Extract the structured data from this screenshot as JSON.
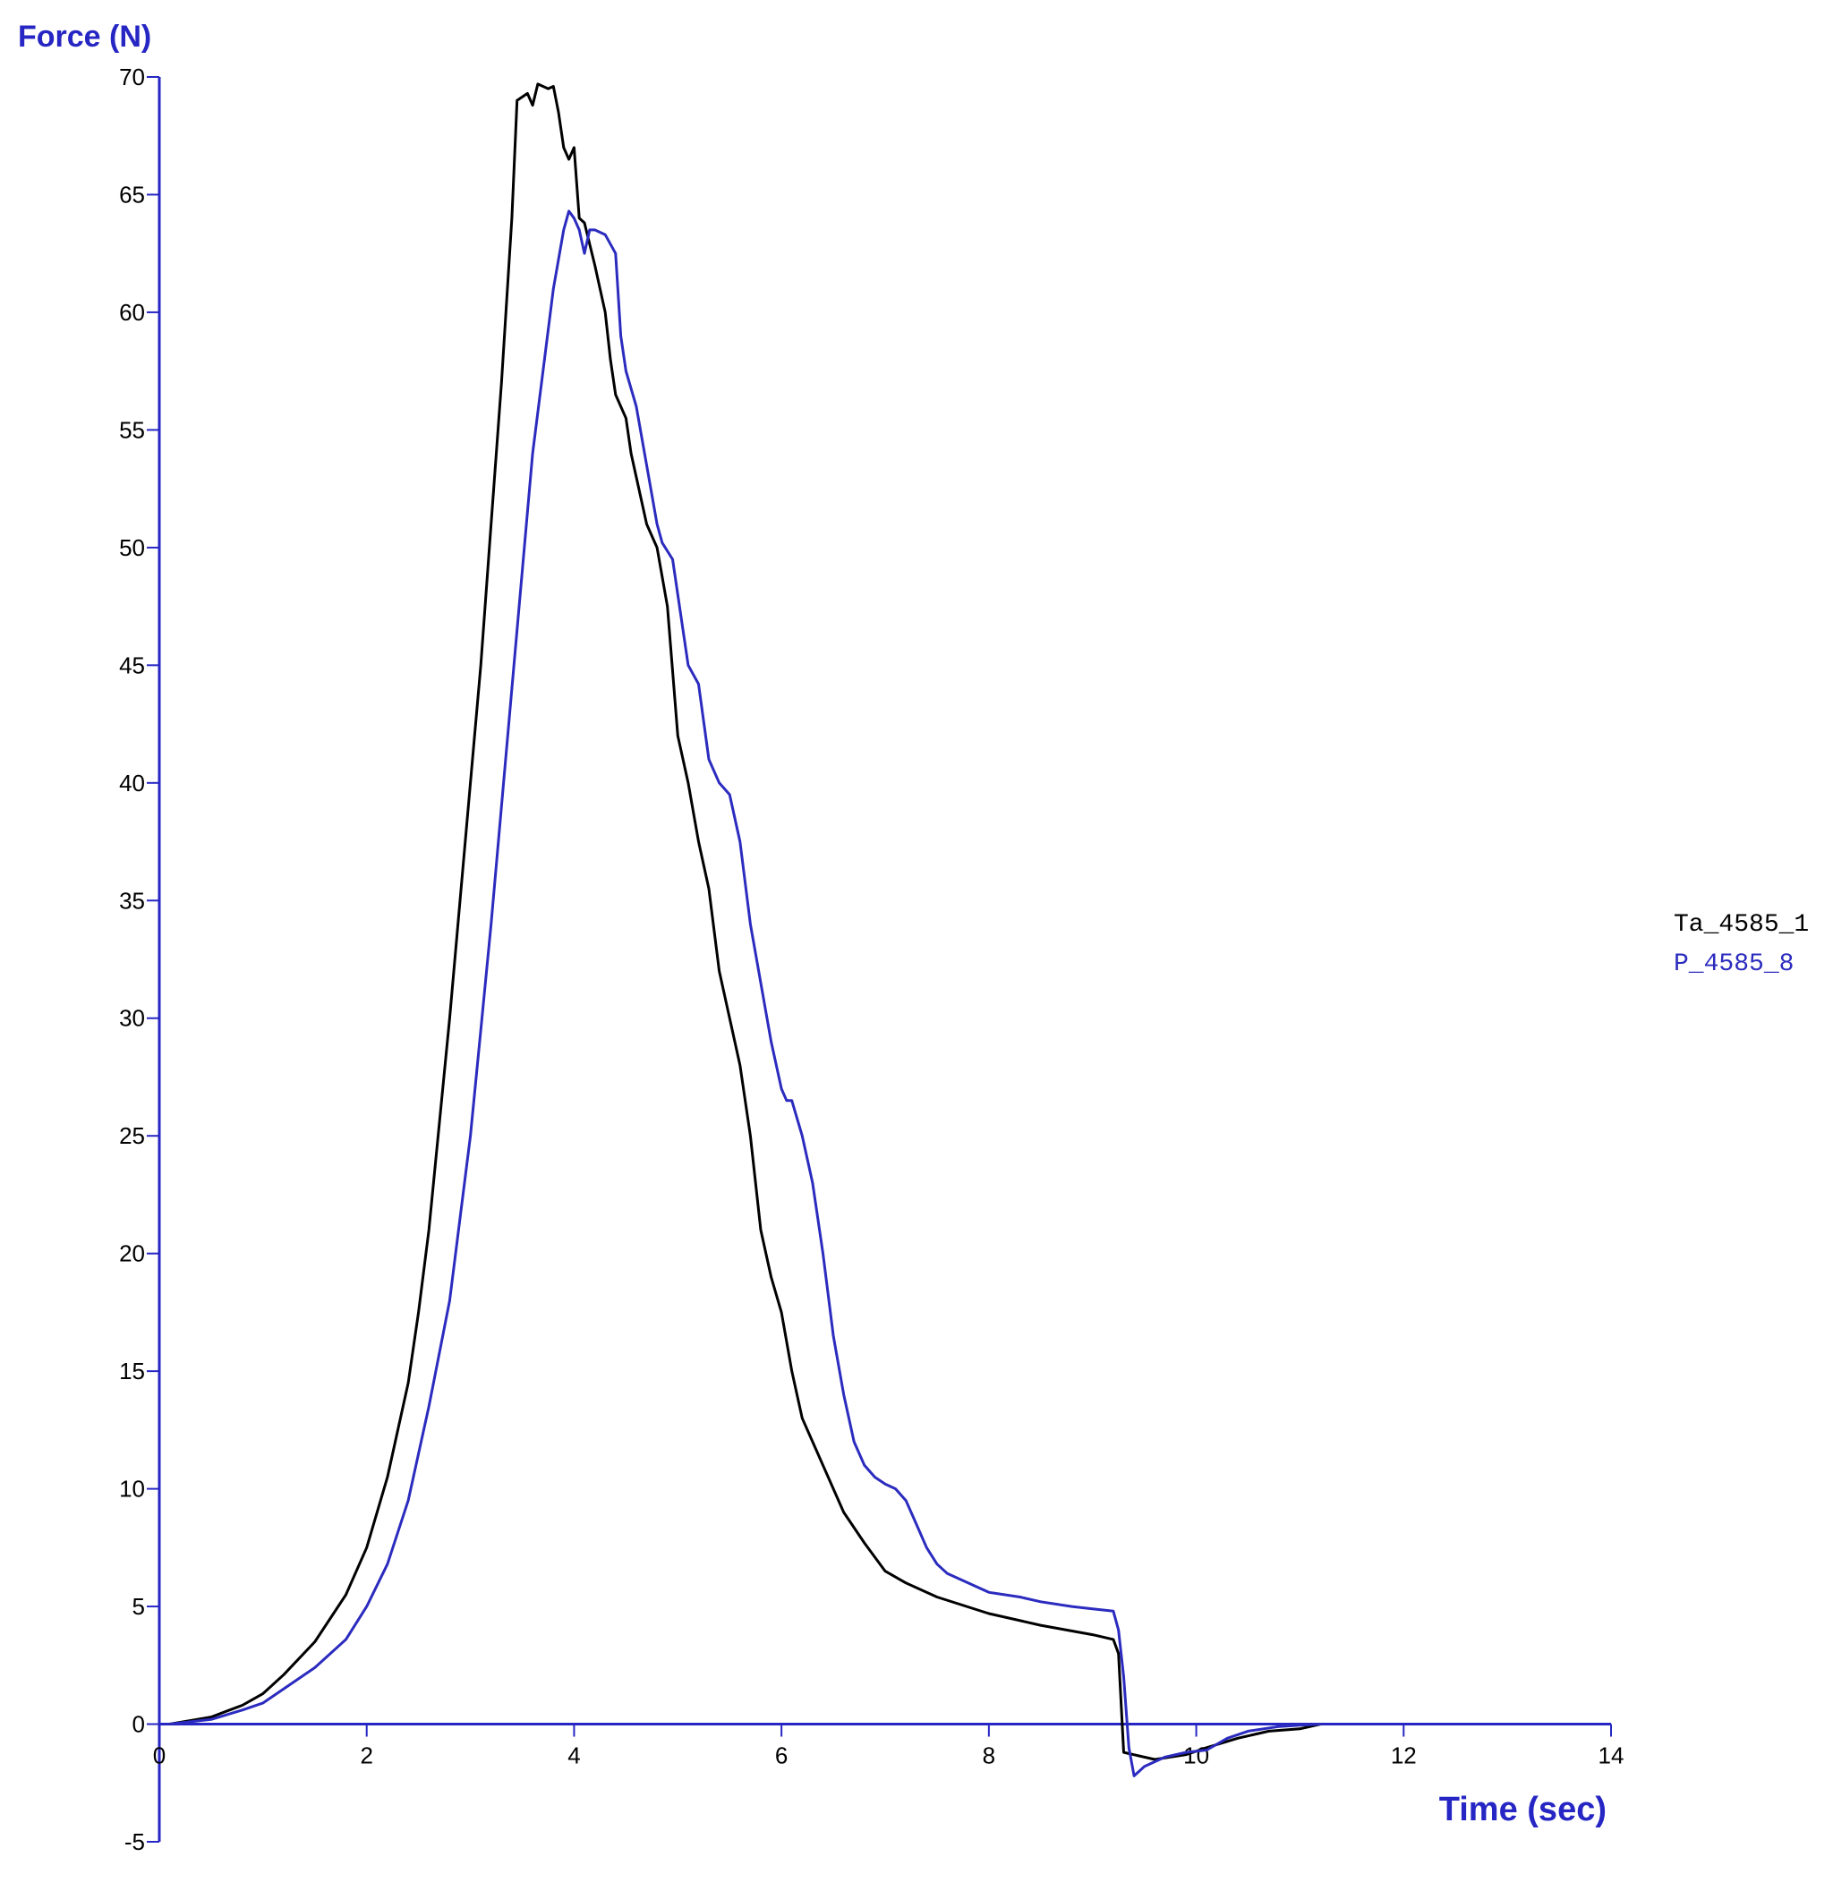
{
  "chart_data": {
    "type": "line",
    "ylabel": "Force (N)",
    "xlabel": "Time (sec)",
    "xlim": [
      0,
      14
    ],
    "ylim": [
      -5,
      70
    ],
    "xticks": [
      0,
      2,
      4,
      6,
      8,
      10,
      12,
      14
    ],
    "yticks": [
      70,
      65,
      60,
      55,
      50,
      45,
      40,
      35,
      30,
      25,
      20,
      15,
      10,
      5,
      0,
      -5
    ],
    "grid": false,
    "legend_position": "right",
    "axis_color": "#2626c4",
    "series": [
      {
        "name": "Ta_4585_1",
        "color": "#000000",
        "points": [
          [
            0.1,
            0
          ],
          [
            0.5,
            0.3
          ],
          [
            0.8,
            0.8
          ],
          [
            1.0,
            1.3
          ],
          [
            1.2,
            2.1
          ],
          [
            1.5,
            3.5
          ],
          [
            1.8,
            5.5
          ],
          [
            2.0,
            7.5
          ],
          [
            2.2,
            10.5
          ],
          [
            2.4,
            14.5
          ],
          [
            2.5,
            17.5
          ],
          [
            2.6,
            21
          ],
          [
            2.7,
            25.5
          ],
          [
            2.8,
            30
          ],
          [
            2.9,
            35
          ],
          [
            3.0,
            40
          ],
          [
            3.1,
            45
          ],
          [
            3.2,
            51
          ],
          [
            3.3,
            57
          ],
          [
            3.4,
            64
          ],
          [
            3.45,
            69
          ],
          [
            3.55,
            69.3
          ],
          [
            3.6,
            68.8
          ],
          [
            3.65,
            69.7
          ],
          [
            3.75,
            69.5
          ],
          [
            3.8,
            69.6
          ],
          [
            3.85,
            68.5
          ],
          [
            3.9,
            67
          ],
          [
            3.95,
            66.5
          ],
          [
            4.0,
            67
          ],
          [
            4.05,
            64
          ],
          [
            4.1,
            63.8
          ],
          [
            4.2,
            62
          ],
          [
            4.3,
            60
          ],
          [
            4.35,
            58
          ],
          [
            4.4,
            56.5
          ],
          [
            4.5,
            55.5
          ],
          [
            4.55,
            54
          ],
          [
            4.6,
            53
          ],
          [
            4.7,
            51
          ],
          [
            4.8,
            50
          ],
          [
            4.9,
            47.5
          ],
          [
            5.0,
            42
          ],
          [
            5.1,
            40
          ],
          [
            5.2,
            37.5
          ],
          [
            5.3,
            35.5
          ],
          [
            5.4,
            32
          ],
          [
            5.5,
            30
          ],
          [
            5.6,
            28
          ],
          [
            5.7,
            25
          ],
          [
            5.8,
            21
          ],
          [
            5.9,
            19
          ],
          [
            6.0,
            17.5
          ],
          [
            6.1,
            15
          ],
          [
            6.2,
            13
          ],
          [
            6.3,
            12
          ],
          [
            6.4,
            11
          ],
          [
            6.5,
            10
          ],
          [
            6.6,
            9
          ],
          [
            6.8,
            7.7
          ],
          [
            7.0,
            6.5
          ],
          [
            7.2,
            6.0
          ],
          [
            7.5,
            5.4
          ],
          [
            8.0,
            4.7
          ],
          [
            8.5,
            4.2
          ],
          [
            9.0,
            3.8
          ],
          [
            9.2,
            3.6
          ],
          [
            9.25,
            3.0
          ],
          [
            9.3,
            -1.2
          ],
          [
            9.6,
            -1.5
          ],
          [
            9.9,
            -1.3
          ],
          [
            10.1,
            -1.0
          ],
          [
            10.4,
            -0.6
          ],
          [
            10.7,
            -0.3
          ],
          [
            11.0,
            -0.2
          ],
          [
            11.2,
            0
          ]
        ]
      },
      {
        "name": "P_4585_8",
        "color": "#2b2bbf",
        "points": [
          [
            0.1,
            0
          ],
          [
            0.5,
            0.2
          ],
          [
            0.8,
            0.6
          ],
          [
            1.0,
            0.9
          ],
          [
            1.2,
            1.5
          ],
          [
            1.5,
            2.4
          ],
          [
            1.8,
            3.6
          ],
          [
            2.0,
            5
          ],
          [
            2.2,
            6.8
          ],
          [
            2.4,
            9.5
          ],
          [
            2.6,
            13.5
          ],
          [
            2.8,
            18
          ],
          [
            2.9,
            21.5
          ],
          [
            3.0,
            25
          ],
          [
            3.1,
            29.5
          ],
          [
            3.2,
            34
          ],
          [
            3.3,
            39
          ],
          [
            3.4,
            44
          ],
          [
            3.5,
            49
          ],
          [
            3.6,
            54
          ],
          [
            3.7,
            57.5
          ],
          [
            3.8,
            61
          ],
          [
            3.9,
            63.5
          ],
          [
            3.95,
            64.3
          ],
          [
            4.0,
            64
          ],
          [
            4.05,
            63.5
          ],
          [
            4.1,
            62.5
          ],
          [
            4.15,
            63.5
          ],
          [
            4.2,
            63.5
          ],
          [
            4.3,
            63.3
          ],
          [
            4.4,
            62.5
          ],
          [
            4.45,
            59
          ],
          [
            4.5,
            57.5
          ],
          [
            4.6,
            56
          ],
          [
            4.7,
            53.5
          ],
          [
            4.8,
            51
          ],
          [
            4.85,
            50.2
          ],
          [
            4.95,
            49.5
          ],
          [
            5.0,
            48
          ],
          [
            5.1,
            45
          ],
          [
            5.2,
            44.2
          ],
          [
            5.3,
            41
          ],
          [
            5.4,
            40
          ],
          [
            5.5,
            39.5
          ],
          [
            5.6,
            37.5
          ],
          [
            5.7,
            34
          ],
          [
            5.8,
            31.5
          ],
          [
            5.9,
            29
          ],
          [
            6.0,
            27
          ],
          [
            6.05,
            26.5
          ],
          [
            6.1,
            26.5
          ],
          [
            6.2,
            25
          ],
          [
            6.3,
            23
          ],
          [
            6.4,
            20
          ],
          [
            6.5,
            16.5
          ],
          [
            6.6,
            14
          ],
          [
            6.7,
            12
          ],
          [
            6.8,
            11
          ],
          [
            6.9,
            10.5
          ],
          [
            7.0,
            10.2
          ],
          [
            7.1,
            10.0
          ],
          [
            7.2,
            9.5
          ],
          [
            7.3,
            8.5
          ],
          [
            7.4,
            7.5
          ],
          [
            7.5,
            6.8
          ],
          [
            7.6,
            6.4
          ],
          [
            7.8,
            6.0
          ],
          [
            8.0,
            5.6
          ],
          [
            8.3,
            5.4
          ],
          [
            8.5,
            5.2
          ],
          [
            8.8,
            5.0
          ],
          [
            9.0,
            4.9
          ],
          [
            9.2,
            4.8
          ],
          [
            9.25,
            4.0
          ],
          [
            9.3,
            2.0
          ],
          [
            9.35,
            -1.0
          ],
          [
            9.4,
            -2.2
          ],
          [
            9.5,
            -1.8
          ],
          [
            9.7,
            -1.4
          ],
          [
            9.9,
            -1.2
          ],
          [
            10.1,
            -1.1
          ],
          [
            10.3,
            -0.6
          ],
          [
            10.5,
            -0.3
          ],
          [
            10.8,
            -0.1
          ],
          [
            11.0,
            -0.05
          ],
          [
            11.2,
            0
          ]
        ]
      }
    ]
  }
}
